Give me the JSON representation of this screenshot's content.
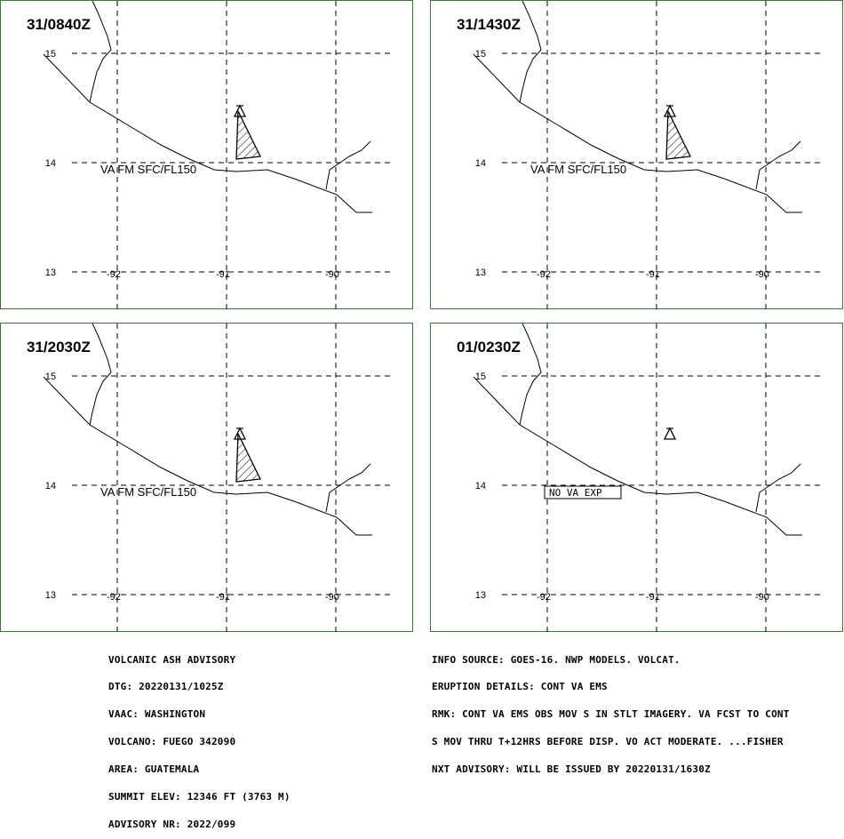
{
  "panels": [
    {
      "time": "31/0840Z",
      "label": "VA FM SFC/FL150",
      "ash": true
    },
    {
      "time": "31/1430Z",
      "label": "VA FM SFC/FL150",
      "ash": true
    },
    {
      "time": "31/2030Z",
      "label": "VA FM SFC/FL150",
      "ash": true
    },
    {
      "time": "01/0230Z",
      "label": "NO VA EXP",
      "ash": false
    }
  ],
  "grid": {
    "lat_labels": [
      "15",
      "14",
      "13"
    ],
    "lon_labels": [
      "-92",
      "-91",
      "-90"
    ]
  },
  "advisory": {
    "lines": [
      "VOLCANIC ASH ADVISORY",
      "DTG: 20220131/1025Z",
      "VAAC: WASHINGTON",
      "VOLCANO: FUEGO 342090",
      "AREA: GUATEMALA",
      "SUMMIT ELEV: 12346 FT (3763 M)",
      "ADVISORY NR: 2022/099"
    ]
  },
  "info": {
    "lines": [
      "INFO SOURCE: GOES-16. NWP MODELS. VOLCAT.",
      "ERUPTION DETAILS: CONT VA EMS",
      "RMK: CONT VA EMS OBS MOV S IN STLT IMAGERY. VA FCST TO CONT",
      "S MOV THRU T+12HRS BEFORE DISP. VO ACT MODERATE. ...FISHER",
      "NXT ADVISORY: WILL BE ISSUED BY 20220131/1630Z"
    ]
  }
}
